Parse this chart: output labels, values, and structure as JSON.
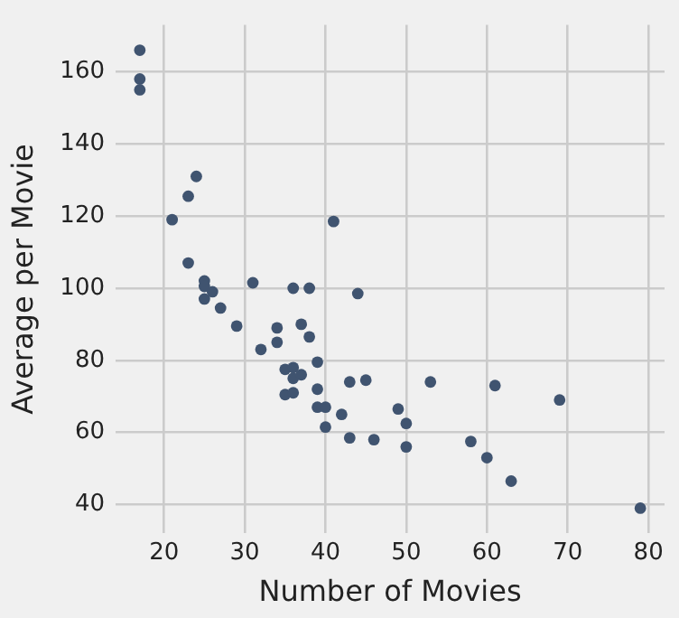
{
  "chart_data": {
    "type": "scatter",
    "xlabel": "Number of Movies",
    "ylabel": "Average per Movie",
    "x": [
      17,
      17,
      17,
      21,
      23,
      24,
      23,
      25,
      25,
      25,
      26,
      27,
      29,
      31,
      32,
      34,
      34,
      35,
      35,
      36,
      36,
      36,
      36,
      37,
      37,
      38,
      38,
      39,
      39,
      39,
      40,
      40,
      41,
      42,
      43,
      43,
      44,
      45,
      46,
      49,
      50,
      50,
      53,
      58,
      60,
      61,
      63,
      69,
      79
    ],
    "series": [
      {
        "color": "#405470",
        "values": [
          166,
          158,
          155,
          119,
          125.5,
          131,
          107,
          102,
          100.5,
          97,
          99,
          94.5,
          89.5,
          101.5,
          83,
          89,
          85,
          77.5,
          70.5,
          100,
          78,
          75,
          71,
          90,
          76,
          100,
          86.5,
          79.5,
          72,
          67,
          67,
          61.5,
          118.5,
          65,
          74,
          58.5,
          98.5,
          74.5,
          58,
          66.5,
          62.5,
          56,
          74,
          57.5,
          53,
          73,
          46.5,
          69,
          39
        ]
      }
    ],
    "xlim": [
      14,
      82
    ],
    "ylim": [
      32,
      173
    ],
    "xticks": [
      20,
      30,
      40,
      50,
      60,
      70,
      80
    ],
    "yticks": [
      40,
      60,
      80,
      100,
      120,
      140,
      160
    ],
    "grid": true,
    "marker": "circle"
  }
}
